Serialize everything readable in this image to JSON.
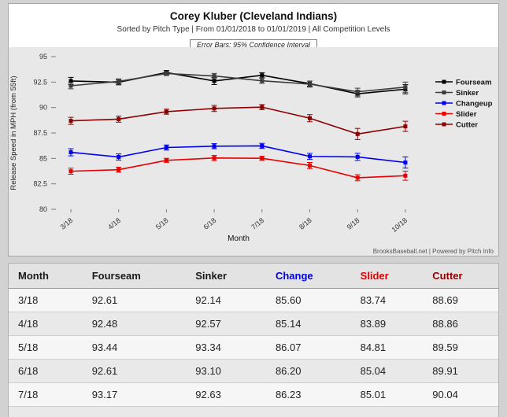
{
  "chart_data": {
    "type": "line",
    "title": "Corey Kluber (Cleveland Indians)",
    "subtitle": "Sorted by Pitch Type | From 01/01/2018 to 01/01/2019 | All Competition Levels",
    "annotation": "Error Bars: 95% Confidence Interval",
    "credit": "BrooksBaseball.net | Powered by Pitch Info",
    "xlabel": "Month",
    "ylabel": "Release Speed in MPH (from 55ft)",
    "x": [
      "3/18",
      "4/18",
      "5/18",
      "6/18",
      "7/18",
      "8/18",
      "9/18",
      "10/18"
    ],
    "ylim": [
      80,
      95
    ],
    "yticks": [
      80,
      82.5,
      85,
      87.5,
      90,
      92.5,
      95
    ],
    "grid": false,
    "legend_position": "right",
    "error_bars": "95% confidence interval",
    "series": [
      {
        "name": "Fourseam",
        "color": "#000000",
        "values": [
          92.61,
          92.48,
          93.44,
          92.61,
          93.17,
          92.35,
          91.35,
          91.8
        ],
        "errors": [
          0.35,
          0.25,
          0.2,
          0.35,
          0.25,
          0.25,
          0.3,
          0.45
        ]
      },
      {
        "name": "Sinker",
        "color": "#3c3c3c",
        "values": [
          92.14,
          92.57,
          93.34,
          93.1,
          92.63,
          92.3,
          91.55,
          92.0
        ],
        "errors": [
          0.3,
          0.25,
          0.2,
          0.25,
          0.25,
          0.3,
          0.35,
          0.5
        ]
      },
      {
        "name": "Changeup",
        "color": "#0000ee",
        "values": [
          85.6,
          85.14,
          86.07,
          86.2,
          86.23,
          85.2,
          85.15,
          84.6
        ],
        "errors": [
          0.35,
          0.3,
          0.25,
          0.25,
          0.25,
          0.3,
          0.35,
          0.55
        ]
      },
      {
        "name": "Slider",
        "color": "#e80000",
        "values": [
          83.74,
          83.89,
          84.81,
          85.04,
          85.01,
          84.3,
          83.1,
          83.3
        ],
        "errors": [
          0.3,
          0.25,
          0.2,
          0.25,
          0.2,
          0.3,
          0.3,
          0.45
        ]
      },
      {
        "name": "Cutter",
        "color": "#8b0000",
        "values": [
          88.69,
          88.86,
          89.59,
          89.91,
          90.04,
          88.95,
          87.4,
          88.15
        ],
        "errors": [
          0.35,
          0.3,
          0.25,
          0.3,
          0.25,
          0.35,
          0.55,
          0.5
        ]
      }
    ]
  },
  "table": {
    "headers": [
      {
        "label": "Month",
        "color": "#1a1a1a"
      },
      {
        "label": "Fourseam",
        "color": "#1a1a1a"
      },
      {
        "label": "Sinker",
        "color": "#1a1a1a"
      },
      {
        "label": "Change",
        "color": "#0000e0"
      },
      {
        "label": "Slider",
        "color": "#e60000"
      },
      {
        "label": "Cutter",
        "color": "#8b0000"
      }
    ],
    "rows": [
      [
        "3/18",
        "92.61",
        "92.14",
        "85.60",
        "83.74",
        "88.69"
      ],
      [
        "4/18",
        "92.48",
        "92.57",
        "85.14",
        "83.89",
        "88.86"
      ],
      [
        "5/18",
        "93.44",
        "93.34",
        "86.07",
        "84.81",
        "89.59"
      ],
      [
        "6/18",
        "92.61",
        "93.10",
        "86.20",
        "85.04",
        "89.91"
      ],
      [
        "7/18",
        "93.17",
        "92.63",
        "86.23",
        "85.01",
        "90.04"
      ]
    ],
    "has_partial_next_row": true
  }
}
